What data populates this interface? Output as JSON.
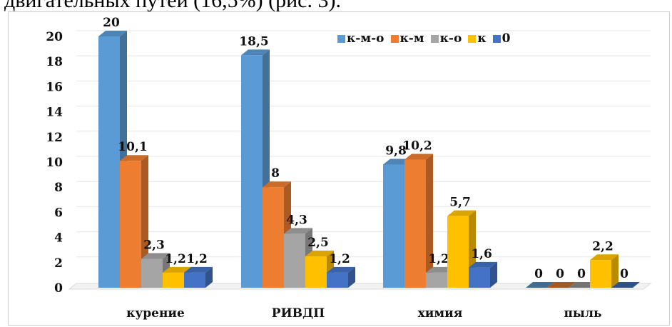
{
  "page": {
    "top_text": "двигательных путей (16,5%) (рис. 3)."
  },
  "chart_data": {
    "type": "bar",
    "title": "",
    "xlabel": "",
    "ylabel": "",
    "ylim": [
      0,
      20
    ],
    "yticks": [
      0,
      2,
      4,
      6,
      8,
      10,
      12,
      14,
      16,
      18,
      20
    ],
    "grid": true,
    "legend": "top-right",
    "categories": [
      "курение",
      "РИВДП",
      "химия",
      "пыль"
    ],
    "series": [
      {
        "name": "к-м-о",
        "color": "#5b9bd5",
        "values": [
          20,
          18.5,
          9.8,
          0
        ],
        "labels": [
          "20",
          "18,5",
          "9,8",
          "0"
        ]
      },
      {
        "name": "к-м",
        "color": "#ed7d31",
        "values": [
          10.1,
          8,
          10.2,
          0
        ],
        "labels": [
          "10,1",
          "8",
          "10,2",
          "0"
        ]
      },
      {
        "name": "к-о",
        "color": "#a5a5a5",
        "values": [
          2.3,
          4.3,
          1.2,
          0
        ],
        "labels": [
          "2,3",
          "4,3",
          "1,2",
          "0"
        ]
      },
      {
        "name": "к",
        "color": "#ffc000",
        "values": [
          1.2,
          2.5,
          5.7,
          2.2
        ],
        "labels": [
          "1,2",
          "2,5",
          "5,7",
          "2,2"
        ]
      },
      {
        "name": "0",
        "color": "#4472c4",
        "values": [
          1.2,
          1.2,
          1.6,
          0
        ],
        "labels": [
          "1,2",
          "1,2",
          "1,6",
          "0"
        ]
      }
    ]
  }
}
